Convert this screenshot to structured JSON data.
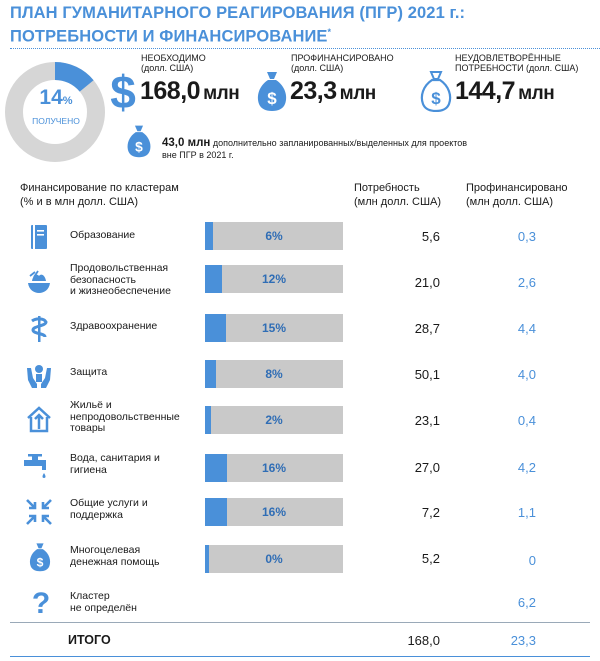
{
  "title": {
    "line1": "ПЛАН ГУМАНИТАРНОГО РЕАГИРОВАНИЯ (ПГР) 2021 г.:",
    "line2": "ПОТРЕБНОСТИ И ФИНАНСИРОВАНИЕ",
    "footnote_mark": "*"
  },
  "donut": {
    "percent_value": "14",
    "percent_sign": "%",
    "label": "ПОЛУЧЕНО",
    "fraction": 0.14,
    "color_funded": "#4a90d9",
    "color_rest": "#d6d6d6"
  },
  "required": {
    "caption1": "НЕОБХОДИМО",
    "caption2": "(долл. США)",
    "value": "168,0",
    "unit": "млн",
    "icon": "dollar-sign-icon"
  },
  "funded": {
    "caption1": "ПРОФИНАНСИРОВАНО",
    "caption2": "(долл. США)",
    "value": "23,3",
    "unit": "млн",
    "icon": "money-bag-icon"
  },
  "unmet": {
    "caption1": "НЕУДОВЛЕТВОРЁННЫЕ",
    "caption2": "ПОТРЕБНОСТИ (долл. США)",
    "value": "144,7",
    "unit": "млн",
    "icon": "money-bag-outline-icon"
  },
  "extra": {
    "amount": "43,0 млн",
    "text1": "дополнительно запланированных/выделенных для проектов",
    "text2": "вне ПГР в 2021 г."
  },
  "headers": {
    "cluster1": "Финансирование по кластерам",
    "cluster2": "(% и в млн долл. США)",
    "need1": "Потребность",
    "need2": "(млн долл. США)",
    "fund1": "Профинансировано",
    "fund2": "(млн долл. США)"
  },
  "rows": [
    {
      "icon": "education-book-icon",
      "label1": "Образование",
      "label2": "",
      "label3": "",
      "pct": "6%",
      "fraction": 0.06,
      "need": "5,6",
      "funded": "0,3"
    },
    {
      "icon": "food-bowl-icon",
      "label1": "Продовольственная",
      "label2": "безопасность",
      "label3": "и жизнеобеспечение",
      "pct": "12%",
      "fraction": 0.12,
      "need": "21,0",
      "funded": "2,6"
    },
    {
      "icon": "health-caduceus-icon",
      "label1": "Здравоохранение",
      "label2": "",
      "label3": "",
      "pct": "15%",
      "fraction": 0.15,
      "need": "28,7",
      "funded": "4,4"
    },
    {
      "icon": "protection-hands-icon",
      "label1": "Защита",
      "label2": "",
      "label3": "",
      "pct": "8%",
      "fraction": 0.08,
      "need": "50,1",
      "funded": "4,0"
    },
    {
      "icon": "shelter-house-icon",
      "label1": "Жильё и",
      "label2": "непродовольственные",
      "label3": "товары",
      "pct": "2%",
      "fraction": 0.02,
      "need": "23,1",
      "funded": "0,4"
    },
    {
      "icon": "water-tap-icon",
      "label1": "Вода, санитария и",
      "label2": "гигиена",
      "label3": "",
      "pct": "16%",
      "fraction": 0.16,
      "need": "27,0",
      "funded": "4,2"
    },
    {
      "icon": "common-services-arrows-icon",
      "label1": "Общие услуги и",
      "label2": "поддержка",
      "label3": "",
      "pct": "16%",
      "fraction": 0.16,
      "need": "7,2",
      "funded": "1,1"
    },
    {
      "icon": "cash-bag-icon",
      "label1": "Многоцелевая",
      "label2": "денежная помощь",
      "label3": "",
      "pct": "0%",
      "fraction": 0.0,
      "need": "5,2",
      "funded": "0"
    },
    {
      "icon": "question-mark-icon",
      "label1": "Кластер",
      "label2": "не определён",
      "label3": "",
      "pct": "",
      "fraction": null,
      "need": "",
      "funded": "6,2"
    }
  ],
  "total": {
    "label": "ИТОГО",
    "need": "168,0",
    "funded": "23,3"
  },
  "colors": {
    "accent": "#4a90d9",
    "bar_bg": "#c9c9c9",
    "text": "#1a1a1a"
  }
}
